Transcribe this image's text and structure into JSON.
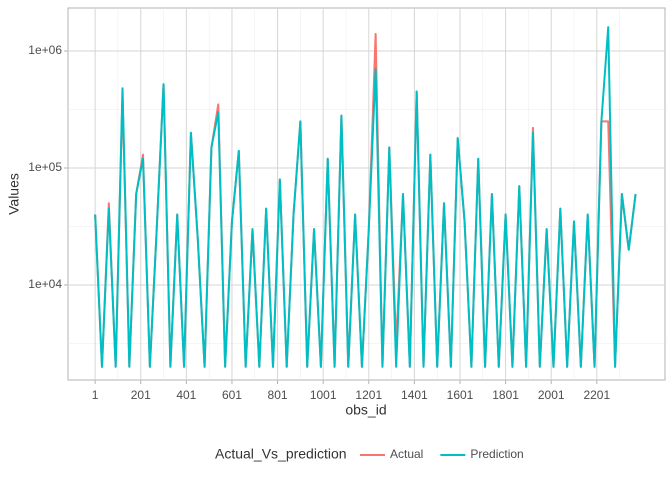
{
  "chart_data": {
    "type": "line",
    "x_label": "obs_id",
    "y_label": "Values",
    "legend_title": "Actual_Vs_prediction",
    "legend_position": "bottom",
    "log_y": true,
    "grid": true,
    "x": [
      1,
      31,
      61,
      91,
      121,
      151,
      181,
      211,
      241,
      271,
      301,
      331,
      361,
      391,
      421,
      451,
      481,
      511,
      541,
      571,
      601,
      631,
      661,
      691,
      721,
      751,
      781,
      811,
      841,
      871,
      901,
      931,
      961,
      991,
      1021,
      1051,
      1081,
      1111,
      1141,
      1171,
      1201,
      1231,
      1261,
      1291,
      1321,
      1351,
      1381,
      1411,
      1441,
      1471,
      1501,
      1531,
      1561,
      1591,
      1621,
      1651,
      1681,
      1711,
      1741,
      1771,
      1801,
      1831,
      1861,
      1891,
      1921,
      1951,
      1981,
      2011,
      2041,
      2071,
      2101,
      2131,
      2161,
      2191,
      2221,
      2251,
      2281,
      2311,
      2341,
      2371
    ],
    "series": [
      {
        "name": "Actual",
        "color": "#F8766D",
        "values": [
          40000,
          2000,
          50000,
          2000,
          420000,
          2000,
          60000,
          130000,
          2000,
          30000,
          520000,
          2000,
          40000,
          2000,
          200000,
          25000,
          2000,
          150000,
          350000,
          2000,
          35000,
          140000,
          2000,
          30000,
          2000,
          45000,
          2000,
          80000,
          2000,
          40000,
          250000,
          2000,
          30000,
          2000,
          120000,
          2000,
          280000,
          2000,
          40000,
          2000,
          30000,
          1400000,
          2000,
          150000,
          3000,
          60000,
          2000,
          450000,
          2000,
          130000,
          2000,
          50000,
          2000,
          180000,
          35000,
          2000,
          120000,
          2000,
          60000,
          2000,
          40000,
          2000,
          70000,
          2000,
          220000,
          2000,
          30000,
          2000,
          45000,
          2000,
          35000,
          2000,
          40000,
          2000,
          250000,
          250000,
          2000,
          60000,
          20000,
          60000
        ]
      },
      {
        "name": "Prediction",
        "color": "#00BFC4",
        "values": [
          40000,
          2000,
          45000,
          2000,
          480000,
          2000,
          60000,
          120000,
          2000,
          30000,
          520000,
          2000,
          40000,
          2000,
          200000,
          25000,
          2000,
          150000,
          300000,
          2000,
          35000,
          140000,
          2000,
          30000,
          2000,
          45000,
          2000,
          80000,
          2000,
          40000,
          250000,
          2000,
          30000,
          2000,
          120000,
          2000,
          280000,
          2000,
          40000,
          2000,
          30000,
          700000,
          2000,
          150000,
          2000,
          60000,
          2000,
          450000,
          2000,
          130000,
          2000,
          50000,
          2000,
          180000,
          35000,
          2000,
          120000,
          2000,
          60000,
          2000,
          40000,
          2000,
          70000,
          2000,
          200000,
          2000,
          30000,
          2000,
          45000,
          2000,
          35000,
          2000,
          40000,
          2000,
          250000,
          1600000,
          2000,
          60000,
          20000,
          60000
        ]
      }
    ],
    "xlim": [
      -118,
      2500
    ],
    "xticks": [
      1,
      201,
      401,
      601,
      801,
      1001,
      1201,
      1401,
      1601,
      1801,
      2001,
      2201
    ],
    "xminor": [
      101,
      301,
      501,
      701,
      901,
      1101,
      1301,
      1501,
      1701,
      1901,
      2101,
      2301
    ],
    "ylim": [
      1542,
      2330000
    ],
    "yticks": [
      {
        "value": 10000,
        "label": "1e+04"
      },
      {
        "value": 100000,
        "label": "1e+05"
      },
      {
        "value": 1000000,
        "label": "1e+06"
      }
    ],
    "yminor": [
      3162,
      31623,
      316228
    ]
  }
}
